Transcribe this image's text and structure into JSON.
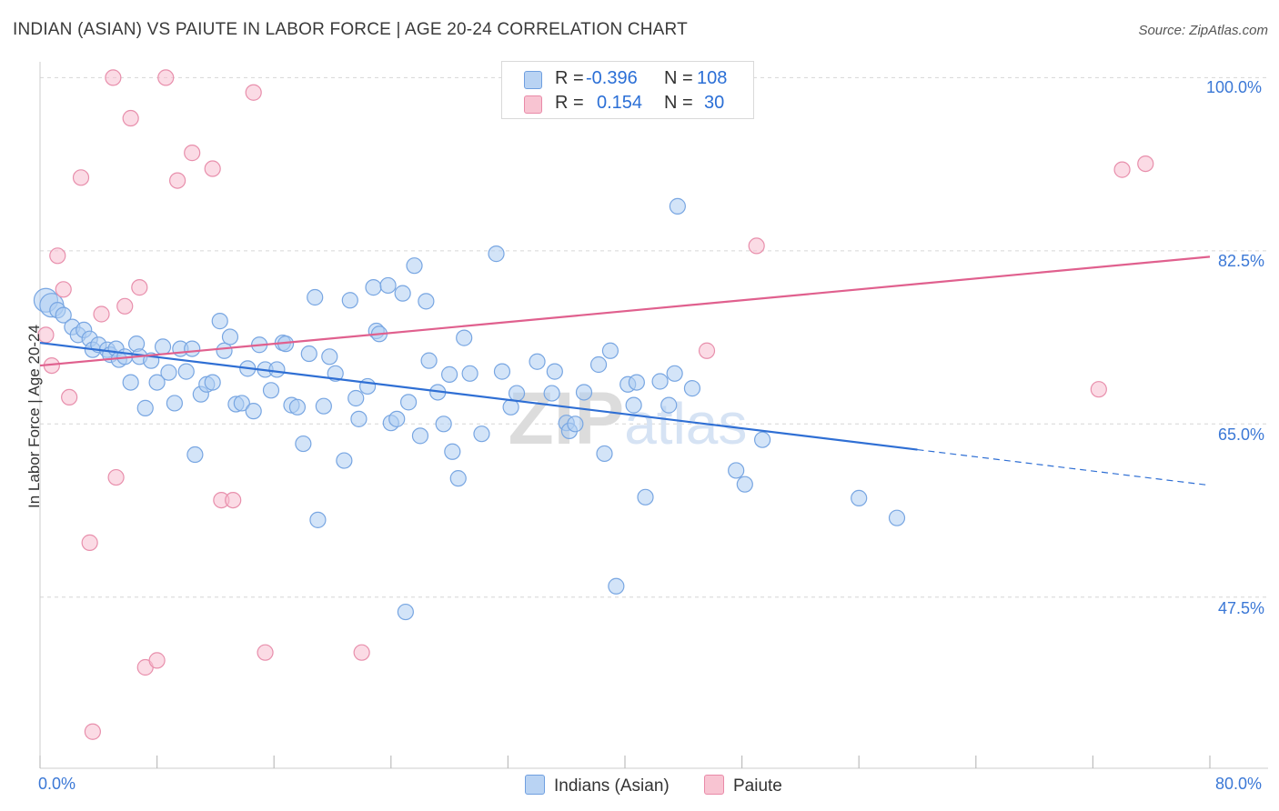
{
  "title": "INDIAN (ASIAN) VS PAIUTE IN LABOR FORCE | AGE 20-24 CORRELATION CHART",
  "source": "Source: ZipAtlas.com",
  "watermark": "ZIPatlas",
  "legend": {
    "r_label": "R =",
    "n_label": "N =",
    "entries": [
      {
        "name": "Indians (Asian)",
        "r": "-0.396",
        "n": "108",
        "fill": "#b9d3f3",
        "stroke": "#6f9fe0"
      },
      {
        "name": "Paiute",
        "r": "0.154",
        "n": "30",
        "fill": "#f8c4d2",
        "stroke": "#e98aa8"
      }
    ]
  },
  "colors": {
    "blue_line": "#2f6fd4",
    "pink_line": "#e0608e",
    "tick_text": "#3b78d6"
  },
  "chart_data": {
    "type": "scatter",
    "xlabel": "",
    "ylabel": "In Labor Force | Age 20-24",
    "xlim": [
      0,
      80
    ],
    "ylim": [
      30.2,
      101.6
    ],
    "x_tick_labels": [
      "0.0%",
      "80.0%"
    ],
    "y_ticks": [
      47.5,
      65.0,
      82.5,
      100.0
    ],
    "y_tick_labels": [
      "47.5%",
      "65.0%",
      "82.5%",
      "100.0%"
    ],
    "grid": true,
    "legend_position": "top-center",
    "series": [
      {
        "name": "Indians (Asian)",
        "r": -0.396,
        "n": 108,
        "trend": {
          "x0": 0,
          "y0": 73.2,
          "x1": 60,
          "y1": 62.4,
          "dashed_to_x": 80,
          "dashed_to_y": 58.8
        },
        "points": [
          [
            0.4,
            77.5
          ],
          [
            0.8,
            77.0
          ],
          [
            1.2,
            76.5
          ],
          [
            1.6,
            76.0
          ],
          [
            2.2,
            74.8
          ],
          [
            2.6,
            74.0
          ],
          [
            3.0,
            74.5
          ],
          [
            3.4,
            73.6
          ],
          [
            3.6,
            72.5
          ],
          [
            4.0,
            73.0
          ],
          [
            4.6,
            72.5
          ],
          [
            4.8,
            72.0
          ],
          [
            5.2,
            72.6
          ],
          [
            5.4,
            71.5
          ],
          [
            5.8,
            71.8
          ],
          [
            6.2,
            69.2
          ],
          [
            6.6,
            73.1
          ],
          [
            6.8,
            71.8
          ],
          [
            7.2,
            66.6
          ],
          [
            7.6,
            71.4
          ],
          [
            8.0,
            69.2
          ],
          [
            8.4,
            72.8
          ],
          [
            8.8,
            70.2
          ],
          [
            9.2,
            67.1
          ],
          [
            9.6,
            72.6
          ],
          [
            10.0,
            70.3
          ],
          [
            10.4,
            72.6
          ],
          [
            10.6,
            61.9
          ],
          [
            11.0,
            68.0
          ],
          [
            11.4,
            69.0
          ],
          [
            11.8,
            69.2
          ],
          [
            12.3,
            75.4
          ],
          [
            12.6,
            72.4
          ],
          [
            13.0,
            73.8
          ],
          [
            13.4,
            67.0
          ],
          [
            13.8,
            67.1
          ],
          [
            14.2,
            70.6
          ],
          [
            14.6,
            66.3
          ],
          [
            15.0,
            73.0
          ],
          [
            15.4,
            70.5
          ],
          [
            15.8,
            68.4
          ],
          [
            16.2,
            70.5
          ],
          [
            16.6,
            73.2
          ],
          [
            16.8,
            73.1
          ],
          [
            17.2,
            66.9
          ],
          [
            17.6,
            66.7
          ],
          [
            18.0,
            63.0
          ],
          [
            18.4,
            72.1
          ],
          [
            18.8,
            77.8
          ],
          [
            19.0,
            55.3
          ],
          [
            19.4,
            66.8
          ],
          [
            19.8,
            71.8
          ],
          [
            20.2,
            70.1
          ],
          [
            20.8,
            61.3
          ],
          [
            21.2,
            77.5
          ],
          [
            21.6,
            67.6
          ],
          [
            21.8,
            65.5
          ],
          [
            22.4,
            68.8
          ],
          [
            22.8,
            78.8
          ],
          [
            23.0,
            74.4
          ],
          [
            23.2,
            74.1
          ],
          [
            23.8,
            79.0
          ],
          [
            24.0,
            65.1
          ],
          [
            24.4,
            65.5
          ],
          [
            24.8,
            78.2
          ],
          [
            25.2,
            67.2
          ],
          [
            25.6,
            81.0
          ],
          [
            26.0,
            63.8
          ],
          [
            26.4,
            77.4
          ],
          [
            26.6,
            71.4
          ],
          [
            27.2,
            68.2
          ],
          [
            27.6,
            65.0
          ],
          [
            28.0,
            70.0
          ],
          [
            28.2,
            62.2
          ],
          [
            28.6,
            59.5
          ],
          [
            29.0,
            73.7
          ],
          [
            29.4,
            70.1
          ],
          [
            30.2,
            64.0
          ],
          [
            31.2,
            82.2
          ],
          [
            31.6,
            70.3
          ],
          [
            32.2,
            66.7
          ],
          [
            32.6,
            68.1
          ],
          [
            34.0,
            71.3
          ],
          [
            35.0,
            68.1
          ],
          [
            35.2,
            70.3
          ],
          [
            36.0,
            65.1
          ],
          [
            36.2,
            64.3
          ],
          [
            36.6,
            65.0
          ],
          [
            37.2,
            68.2
          ],
          [
            38.2,
            71.0
          ],
          [
            38.6,
            62.0
          ],
          [
            39.0,
            72.4
          ],
          [
            39.4,
            48.6
          ],
          [
            40.2,
            69.0
          ],
          [
            40.6,
            66.9
          ],
          [
            40.8,
            69.2
          ],
          [
            41.4,
            57.6
          ],
          [
            42.4,
            69.3
          ],
          [
            43.0,
            66.9
          ],
          [
            43.4,
            70.1
          ],
          [
            43.6,
            87.0
          ],
          [
            44.6,
            68.6
          ],
          [
            47.6,
            60.3
          ],
          [
            48.2,
            58.9
          ],
          [
            49.4,
            63.4
          ],
          [
            56.0,
            57.5
          ],
          [
            58.6,
            55.5
          ],
          [
            25.0,
            46.0
          ]
        ]
      },
      {
        "name": "Paiute",
        "r": 0.154,
        "n": 30,
        "trend": {
          "x0": 0,
          "y0": 70.9,
          "x1": 80,
          "y1": 81.9
        },
        "points": [
          [
            0.4,
            74.0
          ],
          [
            0.8,
            70.9
          ],
          [
            1.2,
            82.0
          ],
          [
            1.6,
            78.6
          ],
          [
            2.0,
            67.7
          ],
          [
            2.8,
            89.9
          ],
          [
            3.4,
            53.0
          ],
          [
            3.6,
            33.9
          ],
          [
            4.2,
            76.1
          ],
          [
            5.0,
            100.0
          ],
          [
            5.2,
            59.6
          ],
          [
            5.8,
            76.9
          ],
          [
            6.2,
            95.9
          ],
          [
            6.8,
            78.8
          ],
          [
            7.2,
            40.4
          ],
          [
            8.0,
            41.1
          ],
          [
            8.6,
            100.0
          ],
          [
            9.4,
            89.6
          ],
          [
            10.4,
            92.4
          ],
          [
            11.8,
            90.8
          ],
          [
            12.4,
            57.3
          ],
          [
            13.2,
            57.3
          ],
          [
            14.6,
            98.5
          ],
          [
            15.4,
            41.9
          ],
          [
            22.0,
            41.9
          ],
          [
            45.6,
            72.4
          ],
          [
            49.0,
            83.0
          ],
          [
            72.4,
            68.5
          ],
          [
            74.0,
            90.7
          ],
          [
            75.6,
            91.3
          ]
        ]
      }
    ]
  }
}
